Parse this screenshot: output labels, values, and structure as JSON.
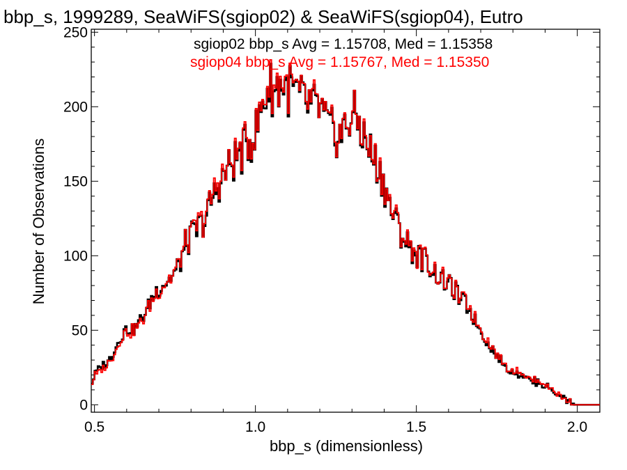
{
  "chart_data": {
    "type": "line",
    "title": "bbp_s, 1999289, SeaWiFS(sgiop02) & SeaWiFS(sgiop04), Eutro",
    "xlabel": "bbp_s (dimensionless)",
    "ylabel": "Number of Observations",
    "xlim": [
      0.49,
      2.07
    ],
    "ylim": [
      -5,
      252
    ],
    "x_ticks": [
      "0.5",
      "1.0",
      "1.5",
      "2.0"
    ],
    "x_tick_values": [
      0.5,
      1.0,
      1.5,
      2.0
    ],
    "y_ticks": [
      "0",
      "50",
      "100",
      "150",
      "200",
      "250"
    ],
    "y_tick_values": [
      0,
      50,
      100,
      150,
      200,
      250
    ],
    "bin_width": 0.005,
    "series": [
      {
        "name": "sgiop02",
        "label": "sgiop02 bbp_s Avg = 1.15708, Med = 1.15358",
        "color": "#000000",
        "x": [
          0.49,
          0.5,
          0.52,
          0.54,
          0.56,
          0.58,
          0.6,
          0.62,
          0.64,
          0.66,
          0.68,
          0.7,
          0.72,
          0.74,
          0.76,
          0.78,
          0.8,
          0.82,
          0.84,
          0.86,
          0.88,
          0.9,
          0.92,
          0.94,
          0.96,
          0.98,
          1.0,
          1.02,
          1.04,
          1.06,
          1.08,
          1.1,
          1.12,
          1.14,
          1.16,
          1.18,
          1.2,
          1.22,
          1.24,
          1.26,
          1.28,
          1.3,
          1.32,
          1.34,
          1.36,
          1.38,
          1.4,
          1.42,
          1.44,
          1.46,
          1.48,
          1.5,
          1.52,
          1.54,
          1.56,
          1.58,
          1.6,
          1.62,
          1.64,
          1.66,
          1.68,
          1.7,
          1.72,
          1.74,
          1.76,
          1.78,
          1.8,
          1.82,
          1.84,
          1.86,
          1.88,
          1.9,
          1.92,
          1.94,
          1.96,
          1.98,
          2.0,
          2.02,
          2.04,
          2.07
        ],
        "y": [
          14,
          20,
          25,
          28,
          35,
          45,
          52,
          50,
          55,
          62,
          72,
          78,
          82,
          86,
          92,
          106,
          112,
          118,
          123,
          134,
          146,
          152,
          160,
          166,
          170,
          177,
          182,
          198,
          214,
          210,
          216,
          212,
          210,
          204,
          202,
          200,
          198,
          188,
          182,
          180,
          186,
          194,
          190,
          178,
          168,
          160,
          148,
          132,
          122,
          112,
          106,
          100,
          98,
          94,
          88,
          84,
          80,
          76,
          70,
          66,
          58,
          50,
          42,
          36,
          30,
          24,
          22,
          21,
          19,
          16,
          15,
          13,
          10,
          6,
          4,
          2,
          0,
          0,
          0,
          0
        ]
      },
      {
        "name": "sgiop04",
        "label": "sgiop04 bbp_s Avg = 1.15767, Med = 1.15350",
        "color": "#ff0000",
        "x": [
          0.49,
          0.5,
          0.52,
          0.54,
          0.56,
          0.58,
          0.6,
          0.62,
          0.64,
          0.66,
          0.68,
          0.7,
          0.72,
          0.74,
          0.76,
          0.78,
          0.8,
          0.82,
          0.84,
          0.86,
          0.88,
          0.9,
          0.92,
          0.94,
          0.96,
          0.98,
          1.0,
          1.02,
          1.04,
          1.06,
          1.08,
          1.1,
          1.12,
          1.14,
          1.16,
          1.18,
          1.2,
          1.22,
          1.24,
          1.26,
          1.28,
          1.3,
          1.32,
          1.34,
          1.36,
          1.38,
          1.4,
          1.42,
          1.44,
          1.46,
          1.48,
          1.5,
          1.52,
          1.54,
          1.56,
          1.58,
          1.6,
          1.62,
          1.64,
          1.66,
          1.68,
          1.7,
          1.72,
          1.74,
          1.76,
          1.78,
          1.8,
          1.82,
          1.84,
          1.86,
          1.88,
          1.9,
          1.92,
          1.94,
          1.96,
          1.98,
          2.0,
          2.02,
          2.04,
          2.07
        ],
        "y": [
          13,
          19,
          24,
          27,
          34,
          44,
          50,
          49,
          54,
          61,
          71,
          77,
          82,
          86,
          93,
          107,
          113,
          120,
          124,
          136,
          148,
          154,
          161,
          167,
          171,
          178,
          184,
          200,
          217,
          212,
          218,
          214,
          211,
          205,
          203,
          201,
          199,
          189,
          183,
          181,
          187,
          195,
          191,
          179,
          169,
          161,
          149,
          133,
          123,
          113,
          107,
          101,
          99,
          95,
          89,
          85,
          81,
          77,
          71,
          67,
          59,
          51,
          43,
          37,
          31,
          25,
          23,
          22,
          20,
          17,
          16,
          14,
          11,
          7,
          4,
          2,
          0,
          0,
          0,
          0
        ]
      }
    ],
    "legend_position": "top-right",
    "grid": false
  }
}
